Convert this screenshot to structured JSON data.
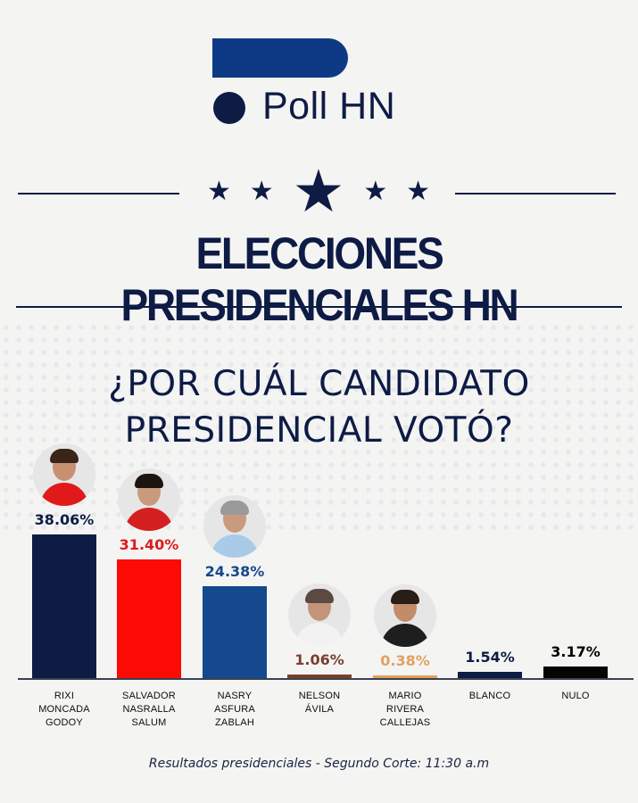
{
  "brand": {
    "name": "Poll HN",
    "logo_color": "#0e3a85",
    "text_color": "#0d1b45"
  },
  "header": {
    "stars": [
      "star-icon",
      "star-icon",
      "star-icon-large",
      "star-icon",
      "star-icon"
    ],
    "title": "ELECCIONES PRESIDENCIALES HN"
  },
  "question": {
    "line1": "¿POR CUÁL CANDIDATO",
    "line2": "PRESIDENCIAL VOTÓ?"
  },
  "footer": {
    "text": "Resultados presidenciales  - Segundo Corte: 11:30 a.m"
  },
  "chart_data": {
    "type": "bar",
    "title": "¿POR CUÁL CANDIDATO PRESIDENCIAL VOTÓ?",
    "xlabel": "",
    "ylabel": "",
    "grid": false,
    "legend": "none",
    "ylim": [
      0,
      40
    ],
    "categories": [
      "RIXI MONCADA GODOY",
      "SALVADOR NASRALLA SALUM",
      "NASRY ASFURA ZABLAH",
      "NELSON ÁVILA",
      "MARIO RIVERA CALLEJAS",
      "BLANCO",
      "NULO"
    ],
    "values": [
      38.06,
      31.4,
      24.38,
      1.06,
      0.38,
      1.54,
      3.17
    ],
    "value_labels": [
      "38.06%",
      "31.40%",
      "24.38%",
      "1.06%",
      "0.38%",
      "1.54%",
      "3.17%"
    ],
    "colors": [
      "#0c1c44",
      "#fb0a06",
      "#15488c",
      "#7b3f2e",
      "#e2a15e",
      "#0c1c44",
      "#050505"
    ],
    "label_colors": [
      "#0c1c44",
      "#e01a1a",
      "#15488c",
      "#7b3f2e",
      "#e2a15e",
      "#0c1c44",
      "#050505"
    ]
  },
  "candidates": [
    {
      "name_lines": [
        "RIXI",
        "MONCADA",
        "GODOY"
      ],
      "pct": "38.06%",
      "has_photo": true
    },
    {
      "name_lines": [
        "SALVADOR",
        "NASRALLA",
        "SALUM"
      ],
      "pct": "31.40%",
      "has_photo": true
    },
    {
      "name_lines": [
        "NASRY",
        "ASFURA",
        "ZABLAH"
      ],
      "pct": "24.38%",
      "has_photo": true
    },
    {
      "name_lines": [
        "NELSON",
        "ÁVILA"
      ],
      "pct": "1.06%",
      "has_photo": true
    },
    {
      "name_lines": [
        "MARIO",
        "RIVERA",
        "CALLEJAS"
      ],
      "pct": "0.38%",
      "has_photo": true
    },
    {
      "name_lines": [
        "BLANCO"
      ],
      "pct": "1.54%",
      "has_photo": false
    },
    {
      "name_lines": [
        "NULO"
      ],
      "pct": "3.17%",
      "has_photo": false
    }
  ]
}
